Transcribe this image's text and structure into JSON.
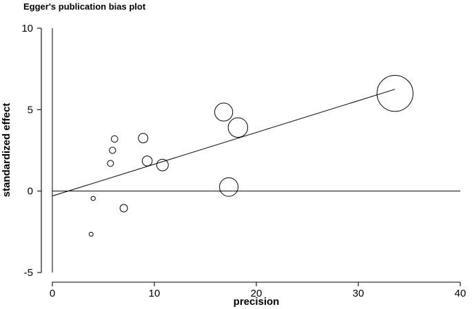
{
  "chart_data": {
    "type": "scatter",
    "title": "Egger's publication bias plot",
    "xlabel": "precision",
    "ylabel": "standardized effect",
    "xlim": [
      0,
      40
    ],
    "ylim": [
      -5,
      10
    ],
    "xticks": [
      0,
      10,
      20,
      30,
      40
    ],
    "yticks": [
      -5,
      0,
      5,
      10
    ],
    "grid": false,
    "points": [
      {
        "x": 3.8,
        "y": -2.65
      },
      {
        "x": 4.0,
        "y": -0.45
      },
      {
        "x": 5.7,
        "y": 1.7
      },
      {
        "x": 5.9,
        "y": 2.5
      },
      {
        "x": 6.1,
        "y": 3.2
      },
      {
        "x": 7.0,
        "y": -1.05
      },
      {
        "x": 8.9,
        "y": 3.25
      },
      {
        "x": 9.3,
        "y": 1.85
      },
      {
        "x": 10.8,
        "y": 1.6
      },
      {
        "x": 16.8,
        "y": 4.85
      },
      {
        "x": 17.3,
        "y": 0.25
      },
      {
        "x": 18.2,
        "y": 3.9
      },
      {
        "x": 33.6,
        "y": 6.0
      }
    ],
    "regression_line": {
      "intercept": -0.3,
      "slope": 0.195,
      "x_end": 33.6
    },
    "reference_line_y": 0
  }
}
